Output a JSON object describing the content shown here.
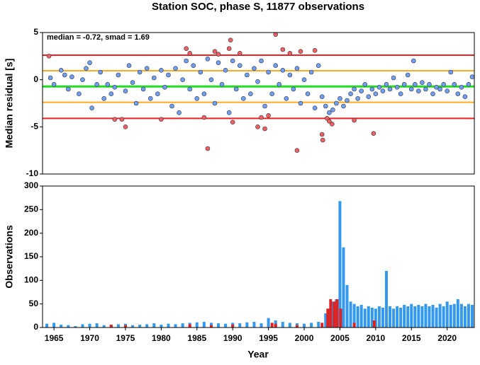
{
  "chart_data": [
    {
      "type": "scatter",
      "title": "Station SOC, phase S, 11877 observations",
      "ylabel": "Median residual [s]",
      "annotation": "median = -0.72, smad = 1.69",
      "xlim": [
        1963.4,
        2023.8
      ],
      "ylim": [
        -10,
        5
      ],
      "yticks": [
        -10,
        -5,
        0,
        5
      ],
      "hlines": [
        {
          "value": 2.6,
          "color": "#ee2222"
        },
        {
          "value": 0.95,
          "color": "#ffaa22"
        },
        {
          "value": -0.72,
          "color": "#22dd22"
        },
        {
          "value": -2.4,
          "color": "#ffaa22"
        },
        {
          "value": -4.1,
          "color": "#ee2222"
        }
      ],
      "series": [
        {
          "color": "#6f9ff0",
          "x": [
            1964.5,
            1965,
            1966,
            1966.5,
            1967,
            1967.5,
            1968.5,
            1969,
            1969.5,
            1970,
            1970.3,
            1971,
            1971.5,
            1972,
            1972.5,
            1973,
            1973.5,
            1974,
            1975,
            1975.5,
            1976,
            1976.5,
            1977,
            1977.5,
            1978,
            1978.5,
            1979,
            1979.5,
            1980,
            1980.5,
            1981,
            1981.5,
            1982,
            1982.5,
            1983,
            1983.5,
            1984,
            1984.5,
            1985,
            1985.5,
            1986,
            1986.5,
            1987,
            1987.5,
            1988,
            1988.5,
            1989,
            1989.5,
            1990,
            1990.5,
            1991,
            1991.5,
            1992,
            1992.5,
            1993,
            1993.5,
            1994,
            1994.5,
            1995,
            1995.5,
            1996,
            1996.5,
            1997,
            1997.5,
            1998,
            1998.5,
            1999,
            1999.5,
            2000,
            2000.5,
            2001,
            2001.5,
            2002,
            2002.5,
            2003,
            2003.5,
            2004,
            2004.5,
            2005,
            2005.5,
            2006,
            2006.5,
            2007,
            2007.5,
            2008,
            2008.5,
            2009,
            2009.5,
            2010,
            2010.5,
            2011,
            2011.5,
            2012,
            2012.5,
            2013,
            2013.5,
            2014,
            2014.5,
            2015,
            2015.3,
            2015.5,
            2016,
            2016.5,
            2017,
            2017.5,
            2018,
            2018.5,
            2019,
            2019.5,
            2020,
            2020.5,
            2021,
            2021.5,
            2022,
            2022.5,
            2023,
            2023.5
          ],
          "values": [
            0.2,
            -0.5,
            1.0,
            0.5,
            -1.0,
            0.3,
            -1.5,
            0.0,
            1.2,
            1.8,
            -3.0,
            -0.5,
            0.8,
            -2.0,
            -0.5,
            -1.5,
            -0.8,
            0.5,
            -1.2,
            1.5,
            -0.3,
            -2.5,
            0.8,
            -1.0,
            1.2,
            -2.0,
            0.2,
            -1.5,
            1.0,
            -0.8,
            0.5,
            -2.8,
            1.2,
            -3.5,
            0.0,
            2.0,
            -1.0,
            1.5,
            -2.0,
            0.8,
            -1.5,
            2.2,
            0.0,
            -2.5,
            1.8,
            -0.5,
            1.0,
            -3.5,
            2.0,
            -1.0,
            1.5,
            -2.0,
            0.5,
            -1.5,
            1.2,
            -0.2,
            2.0,
            -2.8,
            0.8,
            -1.5,
            1.5,
            -0.5,
            1.0,
            -2.0,
            0.5,
            -1.0,
            1.2,
            -2.5,
            0.0,
            -1.5,
            0.8,
            -3.0,
            1.5,
            -1.8,
            -2.8,
            -3.5,
            -3.2,
            -2.5,
            -2.0,
            -2.8,
            -2.2,
            -1.5,
            -1.0,
            -2.0,
            -1.2,
            -0.5,
            -1.8,
            -1.0,
            -1.5,
            -0.8,
            -1.2,
            -0.5,
            -1.0,
            0.2,
            -0.8,
            -1.5,
            -0.5,
            0.5,
            -1.0,
            2.0,
            -0.5,
            -1.2,
            -0.3,
            -1.0,
            -0.5,
            -1.5,
            -0.8,
            -1.0,
            -0.5,
            -1.2,
            0.8,
            -0.5,
            -1.5,
            -0.8,
            -1.8,
            -0.5,
            0.3
          ]
        },
        {
          "color": "#f06060",
          "x": [
            1964.3,
            1973.5,
            1974.5,
            1975,
            1980,
            1983.5,
            1984,
            1986,
            1986.5,
            1987.5,
            1988,
            1989.5,
            1989.7,
            1990,
            1991,
            1993.5,
            1994,
            1994.5,
            1995,
            1996,
            1997,
            1998,
            1999,
            1999.5,
            2001.5,
            2002.5,
            2002.6,
            2003.2,
            2003.5,
            2003.9,
            2007,
            2009.7
          ],
          "values": [
            2.5,
            -4.2,
            -4.2,
            -5.0,
            -4.2,
            3.3,
            2.8,
            -4.0,
            -7.3,
            3.0,
            2.7,
            3.3,
            4.2,
            -4.5,
            2.8,
            -5.0,
            -4.0,
            -5.2,
            -3.8,
            4.8,
            3.2,
            2.8,
            -7.5,
            3.0,
            3.1,
            -5.8,
            -6.4,
            -4.1,
            -4.4,
            -4.7,
            -4.3,
            -5.7
          ]
        }
      ]
    },
    {
      "type": "bar",
      "ylabel": "Observations",
      "xlabel": "Year",
      "xlim": [
        1963.4,
        2023.8
      ],
      "xticks": [
        1965,
        1970,
        1975,
        1980,
        1985,
        1990,
        1995,
        2000,
        2005,
        2010,
        2015,
        2020
      ],
      "ylim": [
        0,
        300
      ],
      "yticks": [
        0,
        50,
        100,
        150,
        200,
        250,
        300
      ],
      "series": [
        {
          "color": "#3399ee",
          "x": [
            1964,
            1965,
            1966,
            1967,
            1968,
            1969,
            1970,
            1971,
            1972,
            1973,
            1974,
            1975,
            1976,
            1977,
            1978,
            1979,
            1980,
            1981,
            1982,
            1983,
            1984,
            1985,
            1986,
            1987,
            1988,
            1989,
            1990,
            1991,
            1992,
            1993,
            1994,
            1995,
            1996,
            1997,
            1998,
            1999,
            2000,
            2001,
            2002,
            2003,
            2003.5,
            2004,
            2004.5,
            2005,
            2005.5,
            2006,
            2006.5,
            2007,
            2007.5,
            2008,
            2008.5,
            2009,
            2009.5,
            2010,
            2010.5,
            2011,
            2011.5,
            2012,
            2012.5,
            2013,
            2013.5,
            2014,
            2014.5,
            2015,
            2015.5,
            2016,
            2016.5,
            2017,
            2017.5,
            2018,
            2018.5,
            2019,
            2019.5,
            2020,
            2020.5,
            2021,
            2021.5,
            2022,
            2022.5,
            2023,
            2023.5
          ],
          "values": [
            8,
            10,
            6,
            5,
            3,
            7,
            8,
            9,
            5,
            6,
            7,
            8,
            5,
            6,
            7,
            9,
            6,
            8,
            7,
            9,
            10,
            11,
            12,
            10,
            9,
            8,
            10,
            9,
            11,
            12,
            9,
            20,
            15,
            12,
            10,
            9,
            8,
            10,
            12,
            30,
            40,
            55,
            60,
            268,
            170,
            90,
            55,
            50,
            45,
            48,
            40,
            45,
            42,
            40,
            45,
            42,
            120,
            45,
            40,
            45,
            42,
            48,
            45,
            50,
            45,
            48,
            45,
            50,
            45,
            48,
            42,
            50,
            45,
            55,
            48,
            50,
            60,
            50,
            45,
            50,
            48
          ]
        },
        {
          "color": "#dd2222",
          "x": [
            1973,
            1975,
            1984,
            1987,
            1990,
            1995.5,
            1996,
            1999,
            2002.5,
            2003.3,
            2003.7,
            2004.2,
            2004.6,
            2005.1,
            2007,
            2009.8
          ],
          "values": [
            6,
            5,
            7,
            5,
            6,
            10,
            8,
            5,
            10,
            40,
            60,
            55,
            60,
            40,
            10,
            15
          ]
        }
      ]
    }
  ]
}
